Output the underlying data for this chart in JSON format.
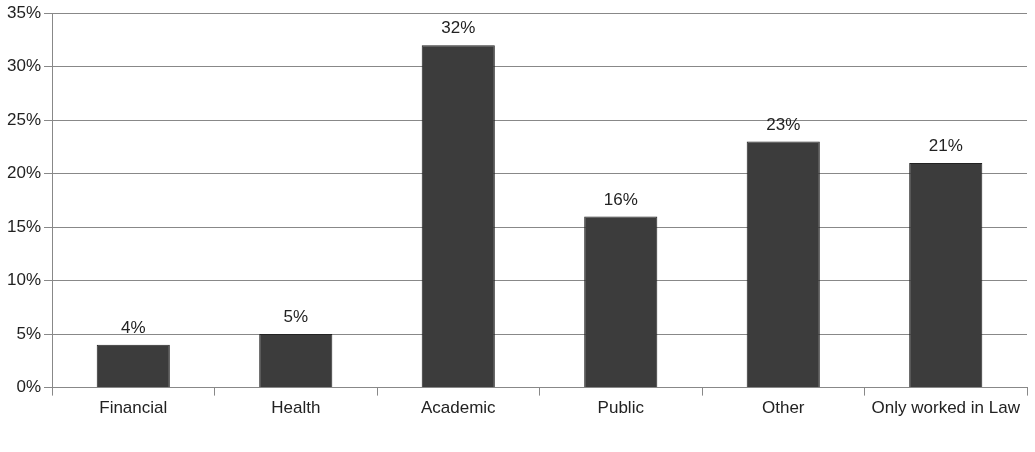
{
  "chart_data": {
    "type": "bar",
    "categories": [
      "Financial",
      "Health",
      "Academic",
      "Public",
      "Other",
      "Only worked in Law"
    ],
    "values": [
      4,
      5,
      32,
      16,
      23,
      21
    ],
    "value_labels": [
      "4%",
      "5%",
      "32%",
      "16%",
      "23%",
      "21%"
    ],
    "color": "#3c3c3c",
    "ylim": [
      0,
      35
    ],
    "yticks": [
      {
        "value": 0,
        "label": "0%"
      },
      {
        "value": 5,
        "label": "5%"
      },
      {
        "value": 10,
        "label": "10%"
      },
      {
        "value": 15,
        "label": "15%"
      },
      {
        "value": 20,
        "label": "20%"
      },
      {
        "value": 25,
        "label": "25%"
      },
      {
        "value": 30,
        "label": "30%"
      },
      {
        "value": 35,
        "label": "35%"
      }
    ],
    "grid": "y",
    "legend": false
  }
}
